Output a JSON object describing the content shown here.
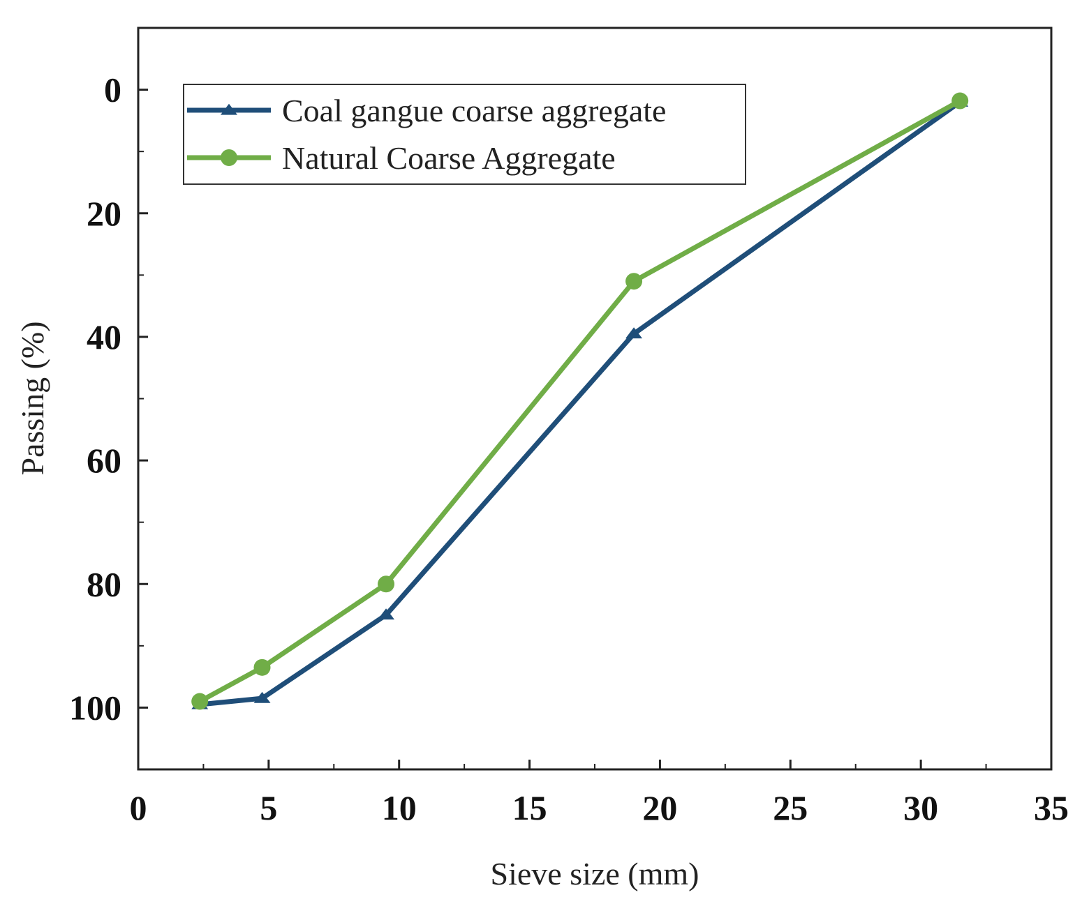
{
  "chart_data": {
    "type": "line",
    "xlabel": "Sieve size (mm)",
    "ylabel": "Passing (%)",
    "xlim": [
      0,
      35
    ],
    "ylim": [
      -10,
      110
    ],
    "y_inverted": true,
    "x_ticks": [
      0,
      5,
      10,
      15,
      20,
      25,
      30,
      35
    ],
    "y_ticks": [
      0,
      20,
      40,
      60,
      80,
      100
    ],
    "grid": false,
    "legend_position": "top-left",
    "series": [
      {
        "name": "Coal gangue coarse aggregate",
        "color": "#1f4e79",
        "marker": "triangle",
        "x": [
          2.36,
          4.75,
          9.5,
          19.0,
          31.5
        ],
        "y": [
          99.5,
          98.5,
          85.0,
          39.5,
          2.0
        ]
      },
      {
        "name": "Natural Coarse Aggregate",
        "color": "#70ad47",
        "marker": "circle",
        "x": [
          2.36,
          4.75,
          9.5,
          19.0,
          31.5
        ],
        "y": [
          99.0,
          93.5,
          80.0,
          31.0,
          1.8
        ]
      }
    ]
  }
}
